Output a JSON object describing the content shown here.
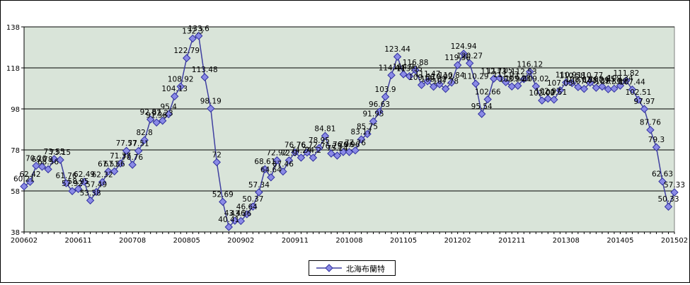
{
  "colors": {
    "plot_background": "#d9e4d9",
    "line": "#3f3fa0",
    "marker_fill": "#8a8ae6",
    "marker_stroke": "#3030a0",
    "grid": "#000000"
  },
  "legend": {
    "label": "北海布蘭特",
    "icon": "diamond-marker-line"
  },
  "chart_data": {
    "type": "line",
    "title": "",
    "xlabel": "",
    "ylabel": "",
    "ylim": [
      38,
      138
    ],
    "yticks": [
      38,
      58,
      78,
      98,
      118,
      138
    ],
    "grid": true,
    "legend_position": "bottom-center",
    "xtick_labels": [
      "200602",
      "200611",
      "200708",
      "200805",
      "200902",
      "200911",
      "201008",
      "201105",
      "201202",
      "201211",
      "201308",
      "201405",
      "201502"
    ],
    "series": [
      {
        "name": "北海布蘭特",
        "x": [
          "200602",
          "200603",
          "200604",
          "200605",
          "200606",
          "200607",
          "200608",
          "200609",
          "200610",
          "200611",
          "200612",
          "200701",
          "200702",
          "200703",
          "200704",
          "200705",
          "200706",
          "200707",
          "200708",
          "200709",
          "200710",
          "200711",
          "200712",
          "200801",
          "200802",
          "200803",
          "200804",
          "200805",
          "200806",
          "200807",
          "200808",
          "200809",
          "200810",
          "200811",
          "200812",
          "200901",
          "200902",
          "200903",
          "200904",
          "200905",
          "200906",
          "200907",
          "200908",
          "200909",
          "200910",
          "200911",
          "200912",
          "201001",
          "201002",
          "201003",
          "201004",
          "201005",
          "201006",
          "201007",
          "201008",
          "201009",
          "201010",
          "201011",
          "201012",
          "201101",
          "201102",
          "201103",
          "201104",
          "201105",
          "201106",
          "201107",
          "201108",
          "201109",
          "201110",
          "201111",
          "201112",
          "201201",
          "201202",
          "201203",
          "201204",
          "201205",
          "201206",
          "201207",
          "201208",
          "201209",
          "201210",
          "201211",
          "201212",
          "201301",
          "201302",
          "201303",
          "201304",
          "201305",
          "201306",
          "201307",
          "201308",
          "201309",
          "201310",
          "201311",
          "201312",
          "201401",
          "201402",
          "201403",
          "201404",
          "201405",
          "201406",
          "201407",
          "201408",
          "201409",
          "201410",
          "201411",
          "201412",
          "201501",
          "201502"
        ],
        "values": [
          60.21,
          62.42,
          70.26,
          69.78,
          68.56,
          73.55,
          73.15,
          61.76,
          57.92,
          58.95,
          62.49,
          53.38,
          57.49,
          62.32,
          67.51,
          67.56,
          71.37,
          77.57,
          70.76,
          77.51,
          82.8,
          92.87,
          91.36,
          92.23,
          95.4,
          104.13,
          108.92,
          122.79,
          132.3,
          133.6,
          113.48,
          98.19,
          72,
          52.69,
          40.41,
          43.46,
          43.36,
          46.64,
          50.37,
          57.34,
          68.61,
          64.64,
          72.92,
          67.46,
          72.9,
          76.76,
          74.24,
          76.72,
          74.2,
          78.95,
          84.81,
          76.23,
          75.24,
          76.96,
          76.96,
          77.76,
          83.17,
          85.75,
          91.95,
          96.63,
          103.9,
          114.44,
          123.44,
          114.9,
          113.95,
          116.88,
          109.66,
          111.47,
          108.82,
          110.02,
          107.78,
          110.84,
          119.36,
          124.94,
          120.27,
          110.29,
          95.54,
          102.66,
          112.73,
          113.05,
          111.03,
          108.94,
          109.28,
          112.53,
          116.12,
          109.02,
          102.09,
          102.97,
          102.51,
          107.05,
          110.9,
          110.58,
          108.62,
          107.77,
          110.77,
          108.29,
          108.85,
          107.59,
          107.89,
          109.34,
          111.82,
          107.44,
          102.51,
          97.97,
          87.76,
          79.3,
          62.63,
          50.33,
          57.33
        ],
        "labels": [
          "60.21",
          "62.42",
          "70.26",
          "69.78",
          "68.56",
          "73.55",
          "73.15",
          "61.76",
          "57.92",
          "58.95",
          "62.49",
          "53.38",
          "57.49",
          "62.32",
          "67.51",
          "67.56",
          "71.37",
          "77.57",
          "70.76",
          "77.51",
          "82.8",
          "92.87",
          "91.36",
          "92.23",
          "95.4",
          "104.13",
          "108.92",
          "122.79",
          "132.3",
          "133.6",
          "113.48",
          "98.19",
          "72",
          "52.69",
          "40.41",
          "43.46",
          "43.36",
          "46.64",
          "50.37",
          "57.34",
          "68.61",
          "64.64",
          "72.92",
          "67.46",
          "72.9",
          "76.76",
          "74.24",
          "76.72",
          "74.2",
          "78.95",
          "84.81",
          "76.23",
          "75.24",
          "76.96",
          "76.96",
          "77.76",
          "83.17",
          "85.75",
          "91.95",
          "96.63",
          "103.9",
          "114.44",
          "123.44",
          "114.9",
          "113.95",
          "116.88",
          "109.66",
          "111.47",
          "108.82",
          "110.02",
          "107.78",
          "110.84",
          "119.36",
          "124.94",
          "120.27",
          "110.29",
          "95.54",
          "102.66",
          "112.73",
          "113.05",
          "111.03",
          "108.94",
          "109.28",
          "112.53",
          "116.12",
          "109.02",
          "102.09",
          "102.97",
          "102.51",
          "107.05",
          "110.9",
          "110.58",
          "108.62",
          "107.77",
          "110.77",
          "108.29",
          "108.85",
          "107.59",
          "107.89",
          "109.34",
          "111.82",
          "107.44",
          "102.51",
          "97.97",
          "87.76",
          "79.3",
          "62.63",
          "50.33",
          "57.33"
        ]
      }
    ]
  }
}
